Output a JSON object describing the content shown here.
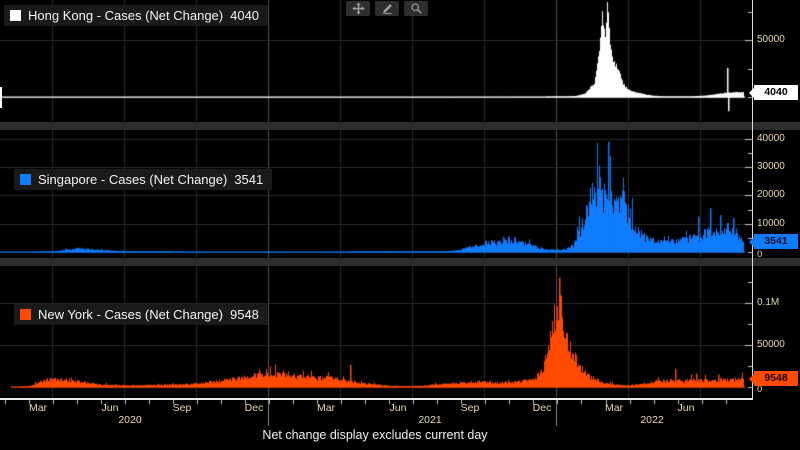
{
  "toolbar": {
    "buttons": [
      {
        "id": "pan",
        "icon": "move-icon"
      },
      {
        "id": "annotate",
        "icon": "pencil-icon"
      },
      {
        "id": "zoom",
        "icon": "magnifier-icon"
      }
    ]
  },
  "colors": {
    "background": "#000000",
    "grid": "#2b2b2b",
    "grid_year": "#4f4f4f",
    "separator": "#2d2d2d",
    "axis": "#e9e9e9",
    "tick_mark": "#cccccc",
    "tick_text": "#ecd9ad",
    "legend_bg": "#1a1a1a",
    "hong_kong": "#ffffff",
    "singapore": "#0f7bfd",
    "new_york": "#ff4a00"
  },
  "chart_data": {
    "type": "bar",
    "footnote": "Net change display excludes current day",
    "x_axis": {
      "start": "Feb 2020",
      "end": "Aug 2022",
      "month_labels": [
        "Mar",
        "Jun",
        "Sep",
        "Dec",
        "Mar",
        "Jun",
        "Sep",
        "Dec",
        "Mar",
        "Jun"
      ],
      "year_labels": [
        "2020",
        "2021",
        "2022"
      ]
    },
    "panels": [
      {
        "id": "hong-kong",
        "legend_label": "Hong Kong - Cases (Net Change)",
        "last_value": 4040,
        "last_value_label": "4040",
        "color": "#ffffff",
        "badge_text_color": "#000000",
        "y_axis": {
          "tick_labels": [
            "50000"
          ],
          "tick_values": [
            50000
          ],
          "minor_step": 25000,
          "zero_label": "",
          "ylim": [
            -15000,
            85000
          ]
        },
        "jitter": 0.1,
        "anchors": [
          [
            0.0,
            2
          ],
          [
            0.3,
            40
          ],
          [
            0.55,
            40
          ],
          [
            0.7,
            90
          ],
          [
            0.74,
            160
          ],
          [
            0.765,
            900
          ],
          [
            0.778,
            3200
          ],
          [
            0.79,
            12000
          ],
          [
            0.797,
            42000
          ],
          [
            0.801,
            73000
          ],
          [
            0.8045,
            52000
          ],
          [
            0.807,
            79000
          ],
          [
            0.81,
            58000
          ],
          [
            0.8125,
            38000
          ],
          [
            0.817,
            30000
          ],
          [
            0.8215,
            26000
          ],
          [
            0.826,
            15000
          ],
          [
            0.831,
            9000
          ],
          [
            0.838,
            5200
          ],
          [
            0.848,
            3500
          ],
          [
            0.858,
            2200
          ],
          [
            0.868,
            1200
          ],
          [
            0.878,
            700
          ],
          [
            0.888,
            430
          ],
          [
            0.9,
            350
          ],
          [
            0.912,
            430
          ],
          [
            0.925,
            750
          ],
          [
            0.9375,
            1350
          ],
          [
            0.95,
            2300
          ],
          [
            0.96,
            3200
          ],
          [
            0.97,
            4200
          ],
          [
            0.9875,
            4040
          ]
        ],
        "spikes": [
          [
            0.9665,
            25500
          ],
          [
            0.9675,
            -12500
          ]
        ]
      },
      {
        "id": "singapore",
        "legend_label": "Singapore - Cases (Net Change)",
        "last_value": 3541,
        "last_value_label": "3541",
        "color": "#0f7bfd",
        "badge_text_color": "#00122b",
        "y_axis": {
          "tick_labels": [
            "40000",
            "30000",
            "20000",
            "10000"
          ],
          "tick_values": [
            40000,
            30000,
            20000,
            10000
          ],
          "minor_step": 5000,
          "zero_label": "0",
          "ylim": [
            0,
            43000
          ]
        },
        "jitter": 0.3,
        "anchors": [
          [
            0.0,
            2
          ],
          [
            0.035,
            15
          ],
          [
            0.06,
            80
          ],
          [
            0.075,
            280
          ],
          [
            0.085,
            750
          ],
          [
            0.098,
            1100
          ],
          [
            0.107,
            1350
          ],
          [
            0.115,
            1050
          ],
          [
            0.125,
            850
          ],
          [
            0.14,
            620
          ],
          [
            0.155,
            400
          ],
          [
            0.17,
            230
          ],
          [
            0.19,
            130
          ],
          [
            0.22,
            70
          ],
          [
            0.26,
            35
          ],
          [
            0.3,
            18
          ],
          [
            0.36,
            28
          ],
          [
            0.42,
            22
          ],
          [
            0.46,
            30
          ],
          [
            0.5,
            190
          ],
          [
            0.53,
            130
          ],
          [
            0.56,
            70
          ],
          [
            0.59,
            100
          ],
          [
            0.61,
            650
          ],
          [
            0.625,
            1700
          ],
          [
            0.64,
            2700
          ],
          [
            0.648,
            3300
          ],
          [
            0.658,
            3200
          ],
          [
            0.667,
            3600
          ],
          [
            0.678,
            4400
          ],
          [
            0.688,
            3900
          ],
          [
            0.698,
            3000
          ],
          [
            0.708,
            2100
          ],
          [
            0.72,
            1300
          ],
          [
            0.73,
            850
          ],
          [
            0.742,
            700
          ],
          [
            0.752,
            950
          ],
          [
            0.762,
            2300
          ],
          [
            0.772,
            8000
          ],
          [
            0.78,
            14000
          ],
          [
            0.7865,
            19500
          ],
          [
            0.7915,
            16000
          ],
          [
            0.797,
            24500
          ],
          [
            0.8025,
            19000
          ],
          [
            0.808,
            26000
          ],
          [
            0.8135,
            18500
          ],
          [
            0.82,
            16500
          ],
          [
            0.827,
            22000
          ],
          [
            0.8335,
            14000
          ],
          [
            0.84,
            10500
          ],
          [
            0.848,
            8000
          ],
          [
            0.856,
            5300
          ],
          [
            0.865,
            4300
          ],
          [
            0.875,
            3700
          ],
          [
            0.885,
            4800
          ],
          [
            0.895,
            3500
          ],
          [
            0.905,
            4700
          ],
          [
            0.9125,
            3900
          ],
          [
            0.92,
            5300
          ],
          [
            0.93,
            4500
          ],
          [
            0.94,
            7200
          ],
          [
            0.95,
            8300
          ],
          [
            0.96,
            6800
          ],
          [
            0.97,
            9300
          ],
          [
            0.978,
            7000
          ],
          [
            0.9875,
            3541
          ]
        ],
        "spikes": [
          [
            0.8085,
            39000
          ],
          [
            0.9285,
            12500
          ],
          [
            0.944,
            15500
          ],
          [
            0.958,
            13000
          ],
          [
            0.975,
            12000
          ]
        ]
      },
      {
        "id": "new-york",
        "legend_label": "New York - Cases (Net Change)",
        "last_value": 9548,
        "last_value_label": "9548",
        "color": "#ff4a00",
        "badge_text_color": "#1d0600",
        "y_axis": {
          "tick_labels": [
            "0.1M",
            "50000"
          ],
          "tick_values": [
            100000,
            50000
          ],
          "minor_step": 25000,
          "zero_label": "0",
          "ylim": [
            0,
            144000
          ]
        },
        "jitter": 0.28,
        "anchors": [
          [
            0.015,
            5
          ],
          [
            0.025,
            60
          ],
          [
            0.038,
            700
          ],
          [
            0.05,
            4800
          ],
          [
            0.062,
            8300
          ],
          [
            0.075,
            10300
          ],
          [
            0.085,
            9200
          ],
          [
            0.1,
            7200
          ],
          [
            0.115,
            4900
          ],
          [
            0.13,
            3100
          ],
          [
            0.15,
            2300
          ],
          [
            0.18,
            2100
          ],
          [
            0.21,
            2400
          ],
          [
            0.235,
            2900
          ],
          [
            0.262,
            3900
          ],
          [
            0.285,
            6200
          ],
          [
            0.31,
            9600
          ],
          [
            0.33,
            12600
          ],
          [
            0.352,
            15600
          ],
          [
            0.365,
            14200
          ],
          [
            0.378,
            15800
          ],
          [
            0.39,
            13200
          ],
          [
            0.405,
            11600
          ],
          [
            0.42,
            10100
          ],
          [
            0.435,
            10800
          ],
          [
            0.45,
            9100
          ],
          [
            0.465,
            7300
          ],
          [
            0.48,
            4600
          ],
          [
            0.5,
            2700
          ],
          [
            0.52,
            1400
          ],
          [
            0.545,
            950
          ],
          [
            0.565,
            1700
          ],
          [
            0.585,
            3300
          ],
          [
            0.605,
            4700
          ],
          [
            0.625,
            5300
          ],
          [
            0.645,
            5700
          ],
          [
            0.665,
            5300
          ],
          [
            0.685,
            5900
          ],
          [
            0.7,
            7600
          ],
          [
            0.712,
            11000
          ],
          [
            0.721,
            21000
          ],
          [
            0.728,
            42000
          ],
          [
            0.7335,
            72000
          ],
          [
            0.737,
            92000
          ],
          [
            0.7395,
            88000
          ],
          [
            0.742,
            108000
          ],
          [
            0.745,
            95000
          ],
          [
            0.7485,
            86000
          ],
          [
            0.7525,
            68000
          ],
          [
            0.757,
            50000
          ],
          [
            0.762,
            38000
          ],
          [
            0.768,
            27000
          ],
          [
            0.775,
            19000
          ],
          [
            0.783,
            12500
          ],
          [
            0.792,
            8600
          ],
          [
            0.8,
            5900
          ],
          [
            0.81,
            3700
          ],
          [
            0.82,
            2500
          ],
          [
            0.832,
            2100
          ],
          [
            0.845,
            2700
          ],
          [
            0.858,
            4300
          ],
          [
            0.87,
            6500
          ],
          [
            0.88,
            7900
          ],
          [
            0.89,
            7100
          ],
          [
            0.9,
            8500
          ],
          [
            0.91,
            7300
          ],
          [
            0.92,
            8900
          ],
          [
            0.93,
            7700
          ],
          [
            0.94,
            8300
          ],
          [
            0.95,
            7100
          ],
          [
            0.96,
            8900
          ],
          [
            0.97,
            8100
          ],
          [
            0.978,
            9300
          ],
          [
            0.9875,
            9548
          ]
        ],
        "spikes": [
          [
            0.7435,
            130000
          ],
          [
            0.465,
            26500
          ],
          [
            0.898,
            21500
          ],
          [
            0.925,
            16000
          ],
          [
            0.955,
            15000
          ]
        ]
      }
    ]
  }
}
